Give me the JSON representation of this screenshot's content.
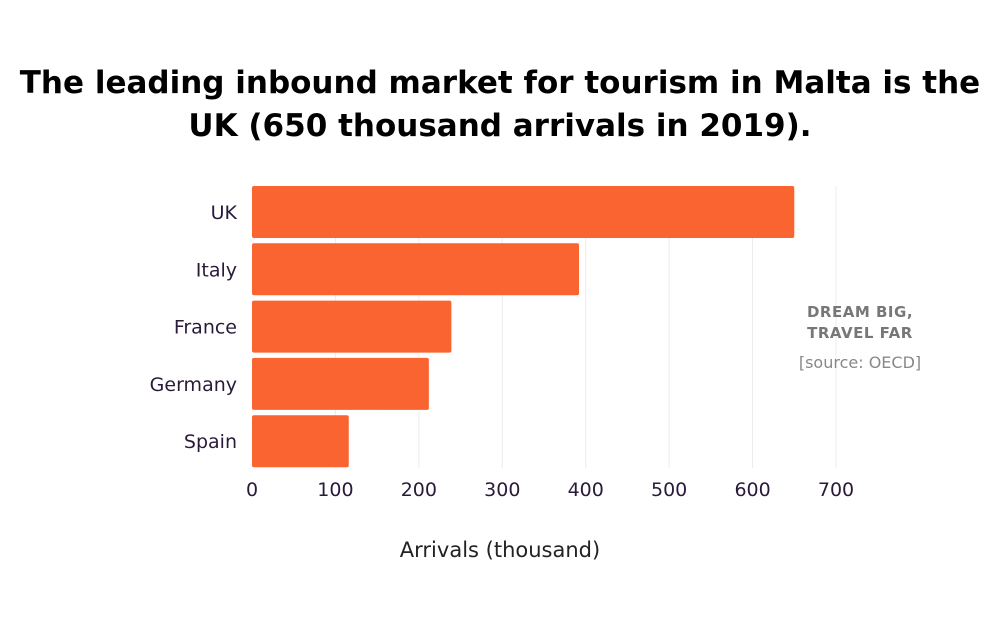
{
  "chart_data": {
    "type": "bar",
    "orientation": "horizontal",
    "title": "The leading inbound market for tourism in Malta is the UK (650 thousand arrivals in 2019).",
    "categories": [
      "UK",
      "Italy",
      "France",
      "Germany",
      "Spain"
    ],
    "values": [
      650,
      392,
      239,
      212,
      116
    ],
    "xlabel": "Arrivals (thousand)",
    "ylabel": "",
    "xlim": [
      0,
      700
    ],
    "xticks": [
      0,
      100,
      200,
      300,
      400,
      500,
      600,
      700
    ],
    "grid": true,
    "bar_color": "#f96431"
  },
  "watermark": {
    "line1": "DREAM BIG,",
    "line2": "TRAVEL FAR"
  },
  "source": "[source: OECD]"
}
